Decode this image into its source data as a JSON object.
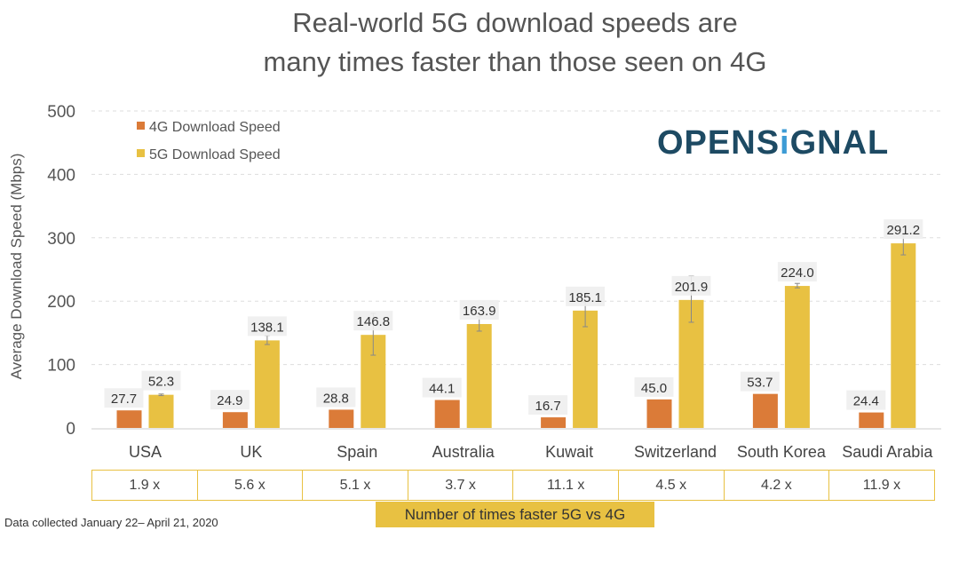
{
  "title_lines": [
    "Real-world 5G download speeds are",
    "many times faster than those seen on 4G"
  ],
  "logo": {
    "text_before": "OPENS",
    "text_i": "i",
    "text_after": "GNAL"
  },
  "chart_data": {
    "type": "bar",
    "title": "Real-world 5G download speeds are many times faster than those seen on 4G",
    "ylabel": "Average Download Speed (Mbps)",
    "xlabel": "",
    "ylim": [
      0,
      500
    ],
    "yticks": [
      0,
      100,
      200,
      300,
      400,
      500
    ],
    "grid": true,
    "legend_position": "top-left",
    "categories": [
      "USA",
      "UK",
      "Spain",
      "Australia",
      "Kuwait",
      "Switzerland",
      "South Korea",
      "Saudi Arabia"
    ],
    "series": [
      {
        "name": "4G Download Speed",
        "color": "#db7b38",
        "values": [
          27.7,
          24.9,
          28.8,
          44.1,
          16.7,
          45.0,
          53.7,
          24.4
        ],
        "labels": [
          "27.7",
          "24.9",
          "28.8",
          "44.1",
          "16.7",
          "45.0",
          "53.7",
          "24.4"
        ]
      },
      {
        "name": "5G Download Speed",
        "color": "#e8c142",
        "values": [
          52.3,
          138.1,
          146.8,
          163.9,
          185.1,
          201.9,
          224.0,
          291.2
        ],
        "labels": [
          "52.3",
          "138.1",
          "146.8",
          "163.9",
          "185.1",
          "201.9",
          "224.0",
          "291.2"
        ],
        "error_low": [
          51,
          131.6,
          114.8,
          152.7,
          159.7,
          166.7,
          221,
          273
        ],
        "error_high": [
          53.5,
          145.6,
          180.7,
          175.5,
          198.9,
          239.5,
          228,
          304
        ]
      }
    ],
    "multipliers": [
      "1.9 x",
      "5.6 x",
      "5.1 x",
      "3.7 x",
      "11.1 x",
      "4.5 x",
      "4.2 x",
      "11.9 x"
    ],
    "multiplier_caption": "Number of times faster 5G vs 4G"
  },
  "footnote": "Data collected January 22– April 21, 2020"
}
